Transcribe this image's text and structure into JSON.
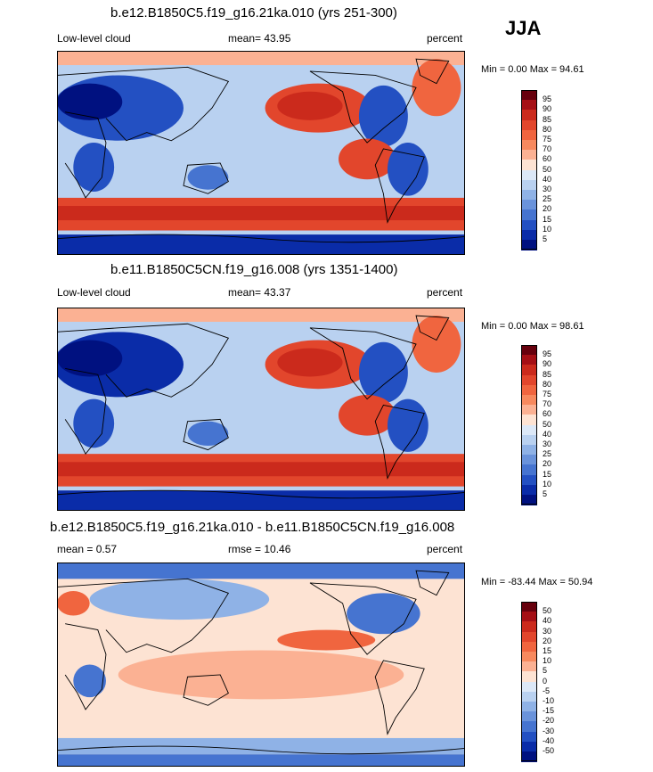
{
  "season": "JJA",
  "panels": [
    {
      "title": "b.e12.B1850C5.f19_g16.21ka.010 (yrs 251-300)",
      "left": "Low-level cloud",
      "center": "mean=  43.95",
      "right": "percent",
      "minmax": "Min =   0.00 Max =  94.61",
      "kind": "abs",
      "colorbar_levels": [
        "95",
        "90",
        "85",
        "80",
        "75",
        "70",
        "60",
        "50",
        "40",
        "30",
        "25",
        "20",
        "15",
        "10",
        "5"
      ]
    },
    {
      "title": "b.e11.B1850C5CN.f19_g16.008 (yrs 1351-1400)",
      "left": "Low-level cloud",
      "center": "mean=  43.37",
      "right": "percent",
      "minmax": "Min =   0.00 Max =  98.61",
      "kind": "abs",
      "colorbar_levels": [
        "95",
        "90",
        "85",
        "80",
        "75",
        "70",
        "60",
        "50",
        "40",
        "30",
        "25",
        "20",
        "15",
        "10",
        "5"
      ]
    },
    {
      "title": "b.e12.B1850C5.f19_g16.21ka.010 - b.e11.B1850C5CN.f19_g16.008",
      "left": "mean =   0.57",
      "center": "rmse =  10.46",
      "right": "percent",
      "minmax": "Min = -83.44 Max =  50.94",
      "kind": "diff",
      "colorbar_levels": [
        "50",
        "40",
        "30",
        "20",
        "15",
        "10",
        "5",
        "0",
        "-5",
        "-10",
        "-15",
        "-20",
        "-30",
        "-40",
        "-50"
      ]
    }
  ],
  "colors": {
    "abs": [
      "#67000d",
      "#a50f15",
      "#cb2a1c",
      "#e2462c",
      "#f0653f",
      "#f7895e",
      "#fbb193",
      "#fde3d3",
      "#dce8f7",
      "#b9d1f0",
      "#8fb2e6",
      "#6a93db",
      "#4674d0",
      "#2350c2",
      "#0a2ca8",
      "#001180"
    ],
    "diff": [
      "#67000d",
      "#a50f15",
      "#cb2a1c",
      "#e2462c",
      "#f0653f",
      "#f7895e",
      "#fbb193",
      "#fde3d3",
      "#dce8f7",
      "#b9d1f0",
      "#8fb2e6",
      "#6a93db",
      "#4674d0",
      "#2350c2",
      "#0a2ca8",
      "#001180"
    ]
  }
}
